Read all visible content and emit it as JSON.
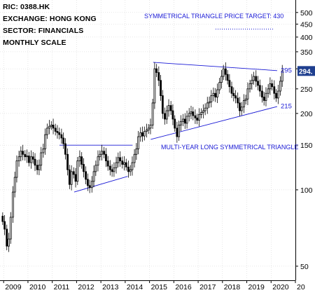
{
  "info": {
    "ric": "RIC: 0388.HK",
    "exchange": "EXCHANGE: HONG KONG",
    "sector": "SECTOR: FINANCIALS",
    "scale": "MONTHLY SCALE"
  },
  "chart_data": {
    "type": "candlestick",
    "yscale": "log",
    "ylim": [
      44,
      560
    ],
    "xlim": [
      2008.85,
      2021.0
    ],
    "yticks": [
      50,
      100,
      150,
      200,
      250,
      300,
      350,
      400,
      450,
      500
    ],
    "xticks": [
      "2009",
      "2010",
      "2011",
      "2012",
      "2013",
      "2014",
      "2015",
      "2016",
      "2017",
      "2018",
      "2019",
      "2020",
      "20"
    ],
    "last_price_label": "294.",
    "last_price": 294,
    "colors": {
      "candle": "#000000",
      "annotation": "#1a1ad6",
      "price_tag": "#1f3f8f",
      "grid": "#cfcfcf"
    },
    "annotations": {
      "target_text": "SYMMETRICAL TRIANGLE PRICE TARGET: 430",
      "target_value": 430,
      "pattern_text": "MULTI-YEAR LONG SYMMETRICAL TRIANGLE",
      "upper_boundary_label": "295",
      "lower_boundary_label": "215"
    },
    "trendlines": [
      {
        "name": "upper boundary",
        "points": [
          [
            2015.15,
            318
          ],
          [
            2020.25,
            295
          ]
        ]
      },
      {
        "name": "lower boundary",
        "points": [
          [
            2015.05,
            158
          ],
          [
            2020.25,
            213
          ]
        ]
      },
      {
        "name": "2011-2014 resistance",
        "points": [
          [
            2011.3,
            150
          ],
          [
            2014.3,
            150
          ]
        ]
      },
      {
        "name": "2011-2014 support",
        "points": [
          [
            2011.9,
            98
          ],
          [
            2014.1,
            113
          ]
        ]
      }
    ],
    "monthly_close": [
      [
        2008.96,
        75
      ],
      [
        2009.04,
        70
      ],
      [
        2009.13,
        60
      ],
      [
        2009.21,
        64
      ],
      [
        2009.29,
        78
      ],
      [
        2009.38,
        98
      ],
      [
        2009.46,
        112
      ],
      [
        2009.54,
        130
      ],
      [
        2009.63,
        135
      ],
      [
        2009.71,
        142
      ],
      [
        2009.79,
        138
      ],
      [
        2009.88,
        135
      ],
      [
        2009.96,
        136
      ],
      [
        2010.04,
        128
      ],
      [
        2010.13,
        135
      ],
      [
        2010.21,
        132
      ],
      [
        2010.29,
        125
      ],
      [
        2010.38,
        120
      ],
      [
        2010.46,
        125
      ],
      [
        2010.54,
        140
      ],
      [
        2010.63,
        145
      ],
      [
        2010.71,
        165
      ],
      [
        2010.79,
        175
      ],
      [
        2010.88,
        178
      ],
      [
        2010.96,
        180
      ],
      [
        2011.04,
        175
      ],
      [
        2011.13,
        170
      ],
      [
        2011.21,
        168
      ],
      [
        2011.29,
        165
      ],
      [
        2011.38,
        160
      ],
      [
        2011.46,
        152
      ],
      [
        2011.54,
        138
      ],
      [
        2011.63,
        120
      ],
      [
        2011.71,
        105
      ],
      [
        2011.79,
        118
      ],
      [
        2011.88,
        115
      ],
      [
        2011.96,
        108
      ],
      [
        2012.04,
        130
      ],
      [
        2012.13,
        135
      ],
      [
        2012.21,
        126
      ],
      [
        2012.29,
        118
      ],
      [
        2012.38,
        110
      ],
      [
        2012.46,
        104
      ],
      [
        2012.54,
        102
      ],
      [
        2012.63,
        108
      ],
      [
        2012.71,
        118
      ],
      [
        2012.79,
        125
      ],
      [
        2012.88,
        135
      ],
      [
        2012.96,
        138
      ],
      [
        2013.04,
        142
      ],
      [
        2013.13,
        138
      ],
      [
        2013.21,
        130
      ],
      [
        2013.29,
        124
      ],
      [
        2013.38,
        120
      ],
      [
        2013.46,
        118
      ],
      [
        2013.54,
        122
      ],
      [
        2013.63,
        128
      ],
      [
        2013.71,
        134
      ],
      [
        2013.79,
        130
      ],
      [
        2013.88,
        126
      ],
      [
        2013.96,
        128
      ],
      [
        2014.04,
        123
      ],
      [
        2014.13,
        118
      ],
      [
        2014.21,
        120
      ],
      [
        2014.29,
        128
      ],
      [
        2014.38,
        138
      ],
      [
        2014.46,
        145
      ],
      [
        2014.54,
        162
      ],
      [
        2014.63,
        168
      ],
      [
        2014.71,
        163
      ],
      [
        2014.79,
        170
      ],
      [
        2014.88,
        172
      ],
      [
        2014.96,
        175
      ],
      [
        2015.04,
        180
      ],
      [
        2015.13,
        220
      ],
      [
        2015.21,
        300
      ],
      [
        2015.29,
        290
      ],
      [
        2015.38,
        270
      ],
      [
        2015.46,
        235
      ],
      [
        2015.54,
        200
      ],
      [
        2015.63,
        190
      ],
      [
        2015.71,
        205
      ],
      [
        2015.79,
        215
      ],
      [
        2015.88,
        205
      ],
      [
        2015.96,
        190
      ],
      [
        2016.04,
        175
      ],
      [
        2016.13,
        162
      ],
      [
        2016.21,
        180
      ],
      [
        2016.29,
        186
      ],
      [
        2016.38,
        190
      ],
      [
        2016.46,
        183
      ],
      [
        2016.54,
        195
      ],
      [
        2016.63,
        200
      ],
      [
        2016.71,
        203
      ],
      [
        2016.79,
        196
      ],
      [
        2016.88,
        192
      ],
      [
        2016.96,
        188
      ],
      [
        2017.04,
        198
      ],
      [
        2017.13,
        202
      ],
      [
        2017.21,
        205
      ],
      [
        2017.29,
        210
      ],
      [
        2017.38,
        220
      ],
      [
        2017.46,
        222
      ],
      [
        2017.54,
        235
      ],
      [
        2017.63,
        240
      ],
      [
        2017.71,
        232
      ],
      [
        2017.79,
        248
      ],
      [
        2017.88,
        265
      ],
      [
        2017.96,
        280
      ],
      [
        2018.04,
        300
      ],
      [
        2018.13,
        285
      ],
      [
        2018.21,
        270
      ],
      [
        2018.29,
        255
      ],
      [
        2018.38,
        240
      ],
      [
        2018.46,
        235
      ],
      [
        2018.54,
        230
      ],
      [
        2018.63,
        220
      ],
      [
        2018.71,
        205
      ],
      [
        2018.79,
        212
      ],
      [
        2018.88,
        225
      ],
      [
        2018.96,
        228
      ],
      [
        2019.04,
        250
      ],
      [
        2019.13,
        262
      ],
      [
        2019.21,
        270
      ],
      [
        2019.29,
        280
      ],
      [
        2019.38,
        268
      ],
      [
        2019.46,
        258
      ],
      [
        2019.54,
        245
      ],
      [
        2019.63,
        232
      ],
      [
        2019.71,
        225
      ],
      [
        2019.79,
        240
      ],
      [
        2019.88,
        250
      ],
      [
        2019.96,
        262
      ],
      [
        2020.04,
        255
      ],
      [
        2020.13,
        240
      ],
      [
        2020.21,
        230
      ],
      [
        2020.29,
        245
      ],
      [
        2020.38,
        268
      ],
      [
        2020.46,
        294
      ]
    ]
  }
}
